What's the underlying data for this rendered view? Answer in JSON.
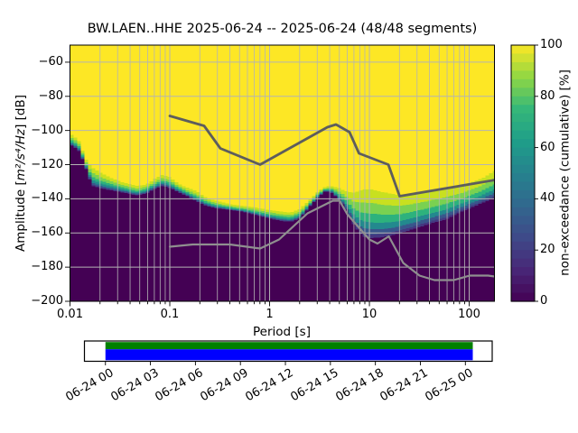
{
  "title": "BW.LAEN..HHE   2025-06-24 -- 2025-06-24  (48/48 segments)",
  "station": {
    "id": "BW.LAEN..HHE",
    "start_date": "2025-06-24",
    "end_date": "2025-06-24",
    "segments_used": "48/48"
  },
  "chart_data": {
    "type": "heatmap",
    "subtype": "ppsd-cumulative",
    "title": "BW.LAEN..HHE   2025-06-24 -- 2025-06-24  (48/48 segments)",
    "xlabel": "Period [s]",
    "ylabel_prefix": "Amplitude [",
    "ylabel_math": "m²/s⁴/Hz",
    "ylabel_suffix": "] [dB]",
    "x_scale": "log",
    "xlim": [
      0.01,
      179
    ],
    "ylim": [
      -200,
      -50
    ],
    "grid": true,
    "grid_color": "#b4b4b4",
    "x_ticks": [
      {
        "v": 0.01,
        "label": "0.01"
      },
      {
        "v": 0.1,
        "label": "0.1"
      },
      {
        "v": 1,
        "label": "1"
      },
      {
        "v": 10,
        "label": "10"
      },
      {
        "v": 100,
        "label": "100"
      }
    ],
    "x_minor_ticks": [
      0.02,
      0.03,
      0.04,
      0.05,
      0.06,
      0.07,
      0.08,
      0.09,
      0.2,
      0.3,
      0.4,
      0.5,
      0.6,
      0.7,
      0.8,
      0.9,
      2,
      3,
      4,
      5,
      6,
      7,
      8,
      9,
      20,
      30,
      40,
      50,
      60,
      70,
      80,
      90
    ],
    "y_ticks": [
      {
        "v": -60,
        "label": "−60"
      },
      {
        "v": -80,
        "label": "−80"
      },
      {
        "v": -100,
        "label": "−100"
      },
      {
        "v": -120,
        "label": "−120"
      },
      {
        "v": -140,
        "label": "−140"
      },
      {
        "v": -160,
        "label": "−160"
      },
      {
        "v": -180,
        "label": "−180"
      },
      {
        "v": -200,
        "label": "−200"
      }
    ],
    "colorbar": {
      "label": "non-exceedance (cumulative) [%]",
      "min": 0,
      "max": 100,
      "ticks": [
        {
          "v": 0,
          "label": "0"
        },
        {
          "v": 20,
          "label": "20"
        },
        {
          "v": 40,
          "label": "40"
        },
        {
          "v": 60,
          "label": "60"
        },
        {
          "v": 80,
          "label": "80"
        },
        {
          "v": 100,
          "label": "100"
        }
      ],
      "colormap": "viridis",
      "stops": [
        "#440154",
        "#482878",
        "#3e4a89",
        "#31688e",
        "#26828e",
        "#1f9e89",
        "#35b779",
        "#90d743",
        "#fde725"
      ]
    },
    "distribution": {
      "description": "cumulative PPSD: above upper_boundary = 100% (yellow), below lower_boundary = 0% (purple); points are [period s, amplitude dB]",
      "top_color": "#fde725",
      "bottom_color": "#440154",
      "upper_boundary": [
        [
          0.01,
          -102.5
        ],
        [
          0.0117,
          -105.5
        ],
        [
          0.013,
          -112.5
        ],
        [
          0.0144,
          -119
        ],
        [
          0.016,
          -121.5
        ],
        [
          0.0197,
          -125
        ],
        [
          0.0243,
          -127.5
        ],
        [
          0.0332,
          -130.5
        ],
        [
          0.0453,
          -132.5
        ],
        [
          0.056,
          -131.5
        ],
        [
          0.069,
          -128
        ],
        [
          0.0815,
          -126
        ],
        [
          0.094,
          -127
        ],
        [
          0.116,
          -131
        ],
        [
          0.143,
          -133.5
        ],
        [
          0.177,
          -135.5
        ],
        [
          0.219,
          -139
        ],
        [
          0.271,
          -141
        ],
        [
          0.37,
          -143
        ],
        [
          0.5,
          -144
        ],
        [
          0.69,
          -145
        ],
        [
          0.94,
          -146.5
        ],
        [
          1.27,
          -147.5
        ],
        [
          1.57,
          -148
        ],
        [
          1.93,
          -146
        ],
        [
          2.39,
          -141
        ],
        [
          2.95,
          -135.5
        ],
        [
          3.48,
          -133
        ],
        [
          4.02,
          -132.5
        ],
        [
          4.66,
          -133.5
        ],
        [
          5.5,
          -135.5
        ],
        [
          6.5,
          -136.5
        ],
        [
          7.5,
          -135.5
        ],
        [
          8.3,
          -134.5
        ],
        [
          10.3,
          -134.5
        ],
        [
          12.8,
          -136
        ],
        [
          15.8,
          -137
        ],
        [
          19.5,
          -138
        ],
        [
          24,
          -137.5
        ],
        [
          37,
          -136
        ],
        [
          56,
          -134
        ],
        [
          85,
          -132
        ],
        [
          130,
          -128
        ],
        [
          179,
          -123
        ]
      ],
      "lower_boundary": [
        [
          0.01,
          -109
        ],
        [
          0.0117,
          -111.5
        ],
        [
          0.013,
          -117.5
        ],
        [
          0.0144,
          -125
        ],
        [
          0.016,
          -132.5
        ],
        [
          0.0197,
          -134
        ],
        [
          0.0243,
          -135
        ],
        [
          0.0332,
          -136.5
        ],
        [
          0.0453,
          -138
        ],
        [
          0.056,
          -137
        ],
        [
          0.069,
          -134
        ],
        [
          0.0815,
          -132.5
        ],
        [
          0.094,
          -133.5
        ],
        [
          0.116,
          -136
        ],
        [
          0.143,
          -138.5
        ],
        [
          0.177,
          -141.5
        ],
        [
          0.219,
          -144
        ],
        [
          0.271,
          -145.5
        ],
        [
          0.37,
          -146.5
        ],
        [
          0.5,
          -147.5
        ],
        [
          0.69,
          -149.5
        ],
        [
          0.94,
          -151.5
        ],
        [
          1.27,
          -153
        ],
        [
          1.57,
          -153.5
        ],
        [
          1.93,
          -151.5
        ],
        [
          2.39,
          -145
        ],
        [
          2.95,
          -139
        ],
        [
          3.48,
          -135.5
        ],
        [
          4.02,
          -136.5
        ],
        [
          4.66,
          -140
        ],
        [
          5.5,
          -145
        ],
        [
          6.5,
          -154
        ],
        [
          7.5,
          -159.5
        ],
        [
          8.3,
          -162
        ],
        [
          10.3,
          -163
        ],
        [
          12.8,
          -162.5
        ],
        [
          15.8,
          -161.5
        ],
        [
          19.5,
          -160
        ],
        [
          24,
          -158.5
        ],
        [
          37,
          -155
        ],
        [
          56,
          -152
        ],
        [
          85,
          -147
        ],
        [
          130,
          -142.5
        ],
        [
          179,
          -139
        ]
      ],
      "bands": [
        {
          "f0": 0.0,
          "f1": 0.28,
          "color": "#c8e020"
        },
        {
          "f0": 0.28,
          "f1": 0.5,
          "color": "#7ad151"
        },
        {
          "f0": 0.5,
          "f1": 0.68,
          "color": "#2db27d"
        },
        {
          "f0": 0.68,
          "f1": 0.82,
          "color": "#23898e"
        },
        {
          "f0": 0.82,
          "f1": 0.93,
          "color": "#39568c"
        },
        {
          "f0": 0.93,
          "f1": 1.0,
          "color": "#453781"
        }
      ]
    },
    "noise_models": {
      "nhnm": {
        "name": "Peterson NHNM",
        "color": "#5d5d5d",
        "points": [
          [
            0.1,
            -91.5
          ],
          [
            0.22,
            -97.4
          ],
          [
            0.32,
            -110.5
          ],
          [
            0.8,
            -120.0
          ],
          [
            3.8,
            -98.0
          ],
          [
            4.6,
            -96.5
          ],
          [
            6.3,
            -101.0
          ],
          [
            7.9,
            -113.5
          ],
          [
            15.4,
            -120.0
          ],
          [
            20.0,
            -138.5
          ],
          [
            354.8,
            -126.0
          ]
        ]
      },
      "nlnm": {
        "name": "Peterson NLNM",
        "color": "#8f8f8f",
        "points": [
          [
            0.1,
            -168.0
          ],
          [
            0.17,
            -166.7
          ],
          [
            0.4,
            -166.7
          ],
          [
            0.8,
            -169.2
          ],
          [
            1.24,
            -163.7
          ],
          [
            2.4,
            -148.6
          ],
          [
            4.3,
            -141.1
          ],
          [
            5.0,
            -141.1
          ],
          [
            6.0,
            -149.0
          ],
          [
            10.0,
            -163.8
          ],
          [
            12.0,
            -166.2
          ],
          [
            15.6,
            -162.1
          ],
          [
            21.9,
            -177.5
          ],
          [
            31.6,
            -185.0
          ],
          [
            45.0,
            -187.5
          ],
          [
            70.0,
            -187.5
          ],
          [
            101.0,
            -185.0
          ],
          [
            154.0,
            -185.0
          ],
          [
            328.0,
            -187.5
          ]
        ]
      }
    },
    "timeline": {
      "tick_labels": [
        "06-24 00",
        "06-24 03",
        "06-24 06",
        "06-24 09",
        "06-24 12",
        "06-24 15",
        "06-24 18",
        "06-24 21",
        "06-25 00"
      ],
      "coverage_color": "#008000",
      "selection_color": "#0000ff",
      "box_color": "#ffffff"
    }
  }
}
